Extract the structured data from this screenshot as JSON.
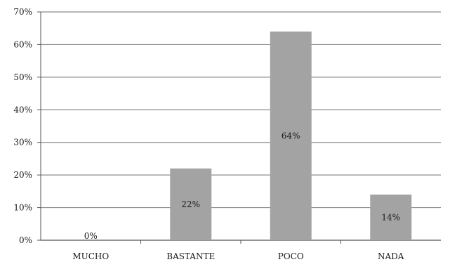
{
  "chart_data": {
    "type": "bar",
    "categories": [
      "MUCHO",
      "BASTANTE",
      "POCO",
      "NADA"
    ],
    "values": [
      0,
      22,
      64,
      14
    ],
    "data_labels": [
      "0%",
      "22%",
      "64%",
      "14%"
    ],
    "ylim": [
      0,
      70
    ],
    "yticks": [
      0,
      10,
      20,
      30,
      40,
      50,
      60,
      70
    ],
    "ytick_labels": [
      "0%",
      "10%",
      "20%",
      "30%",
      "40%",
      "50%",
      "60%",
      "70%"
    ],
    "grid": true,
    "legend": "none",
    "colors": {
      "bar": "#a3a3a3",
      "grid": "#8c8c8c",
      "axis": "#555555"
    }
  }
}
